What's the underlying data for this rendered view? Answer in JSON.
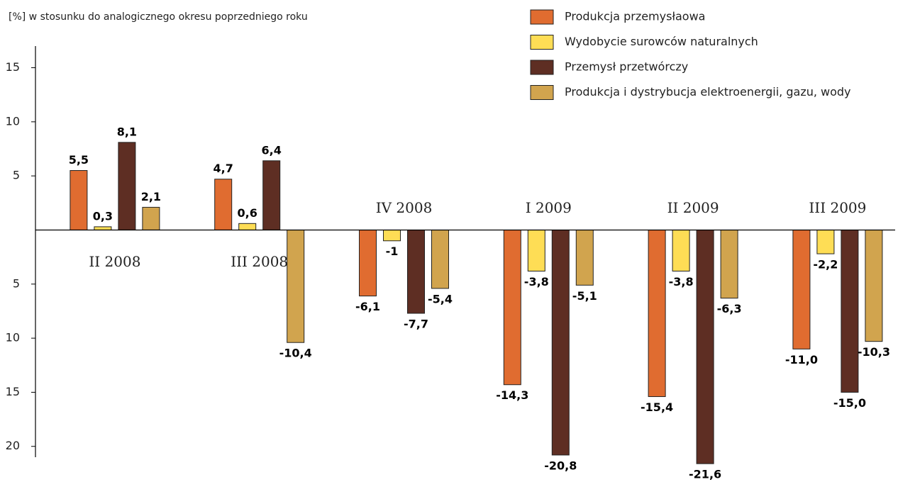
{
  "chart_data": {
    "type": "bar",
    "ylabel": "[%] w stosunku do analogicznego okresu poprzedniego roku",
    "categories": [
      "II 2008",
      "III 2008",
      "IV 2008",
      "I 2009",
      "II 2009",
      "III 2009"
    ],
    "series": [
      {
        "name": "Produkcja przemysłaowa",
        "color": "#e06c30",
        "values": [
          5.5,
          4.7,
          -6.1,
          -14.3,
          -15.4,
          -11.0
        ],
        "value_labels": [
          "5,5",
          "4,7",
          "-6,1",
          "-14,3",
          "-15,4",
          "-11,0"
        ]
      },
      {
        "name": "Wydobycie surowców naturalnych",
        "color": "#fedd55",
        "values": [
          0.3,
          0.6,
          -1,
          -3.8,
          -3.8,
          -2.2
        ],
        "value_labels": [
          "0,3",
          "0,6",
          "-1",
          "-3,8",
          "-3,8",
          "-2,2"
        ]
      },
      {
        "name": "Przemysł przetwórczy",
        "color": "#5e2e23",
        "values": [
          8.1,
          6.4,
          -7.7,
          -20.8,
          -21.6,
          -15.0
        ],
        "value_labels": [
          "8,1",
          "6,4",
          "-7,7",
          "-20,8",
          "-21,6",
          "-15,0"
        ]
      },
      {
        "name": "Produkcja i dystrybucja elektroenergii, gazu, wody",
        "color": "#d1a44e",
        "values": [
          2.1,
          -10.4,
          -5.4,
          -5.1,
          -6.3,
          -10.3
        ],
        "value_labels": [
          "2,1",
          "-10,4",
          "-5,4",
          "-5,1",
          "-6,3",
          "-10,3"
        ]
      }
    ],
    "ylim": [
      -21,
      17
    ],
    "yticks": [
      15,
      10,
      5,
      {
        "value": -5,
        "label": "5"
      },
      {
        "value": -10,
        "label": "10"
      },
      {
        "value": -15,
        "label": "15"
      },
      {
        "value": -20,
        "label": "20"
      }
    ],
    "legend": "top-right"
  }
}
